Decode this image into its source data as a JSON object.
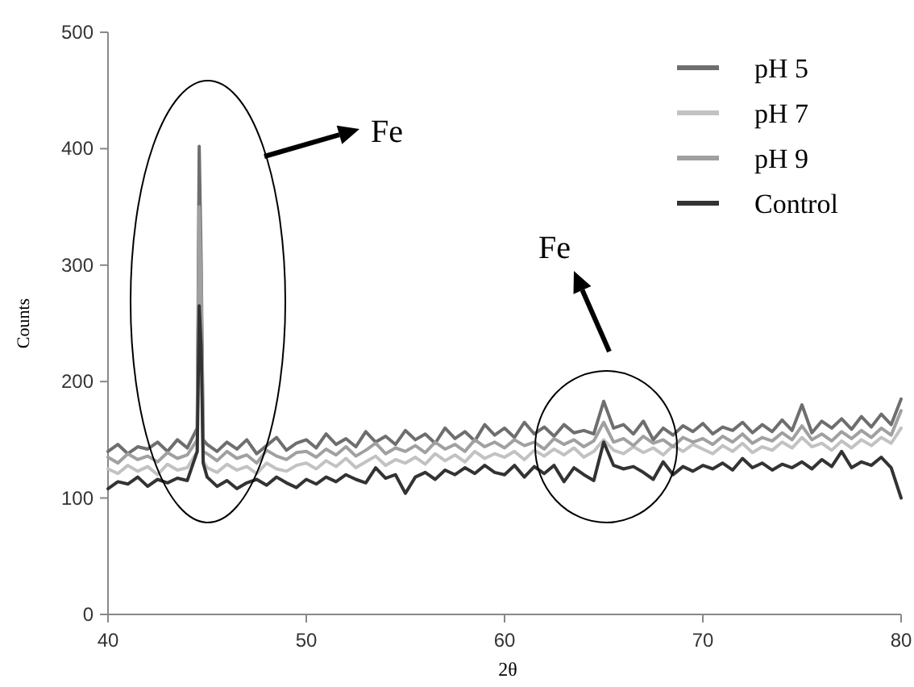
{
  "chart_data": {
    "type": "line",
    "xlabel": "2θ",
    "ylabel": "Counts",
    "x": [
      40,
      40.5,
      41,
      41.5,
      42,
      42.5,
      43,
      43.5,
      44,
      44.5,
      44.6,
      44.7,
      44.8,
      45,
      45.5,
      46,
      46.5,
      47,
      47.5,
      48,
      48.5,
      49,
      49.5,
      50,
      50.5,
      51,
      51.5,
      52,
      52.5,
      53,
      53.5,
      54,
      54.5,
      55,
      55.5,
      56,
      56.5,
      57,
      57.5,
      58,
      58.5,
      59,
      59.5,
      60,
      60.5,
      61,
      61.5,
      62,
      62.5,
      63,
      63.5,
      64,
      64.5,
      65,
      65.5,
      66,
      66.5,
      67,
      67.5,
      68,
      68.5,
      69,
      69.5,
      70,
      70.5,
      71,
      71.5,
      72,
      72.5,
      73,
      73.5,
      74,
      74.5,
      75,
      75.5,
      76,
      76.5,
      77,
      77.5,
      78,
      78.5,
      79,
      79.5,
      80
    ],
    "xlim": [
      40,
      80
    ],
    "xticks": [
      40,
      50,
      60,
      70,
      80
    ],
    "ylim": [
      0,
      500
    ],
    "yticks": [
      0,
      100,
      200,
      300,
      400,
      500
    ],
    "grid": false,
    "legend": "top right",
    "marker": "none",
    "line_style": "solid",
    "series": [
      {
        "name": "pH 5",
        "color": "#6e6e6e",
        "values": [
          140,
          146,
          138,
          144,
          142,
          148,
          140,
          150,
          143,
          160,
          402,
          300,
          150,
          146,
          140,
          148,
          142,
          150,
          138,
          145,
          152,
          141,
          147,
          150,
          143,
          155,
          146,
          151,
          144,
          157,
          148,
          153,
          146,
          158,
          150,
          155,
          147,
          160,
          151,
          157,
          149,
          163,
          154,
          160,
          152,
          165,
          155,
          161,
          153,
          163,
          156,
          158,
          155,
          183,
          160,
          163,
          155,
          166,
          150,
          160,
          154,
          162,
          157,
          164,
          155,
          161,
          158,
          165,
          156,
          163,
          157,
          167,
          158,
          180,
          156,
          166,
          160,
          168,
          159,
          170,
          161,
          172,
          163,
          185
        ]
      },
      {
        "name": "pH 7",
        "color": "#c2c2c2",
        "values": [
          125,
          121,
          128,
          123,
          127,
          120,
          129,
          124,
          126,
          140,
          300,
          250,
          132,
          126,
          122,
          129,
          124,
          127,
          121,
          130,
          125,
          123,
          128,
          130,
          125,
          132,
          127,
          134,
          126,
          131,
          136,
          128,
          133,
          130,
          135,
          129,
          138,
          132,
          137,
          131,
          140,
          134,
          138,
          135,
          140,
          133,
          141,
          136,
          142,
          137,
          143,
          135,
          140,
          150,
          141,
          138,
          144,
          139,
          143,
          137,
          145,
          140,
          146,
          142,
          138,
          145,
          140,
          147,
          139,
          144,
          141,
          148,
          143,
          152,
          144,
          147,
          141,
          149,
          143,
          150,
          145,
          152,
          147,
          160
        ]
      },
      {
        "name": "pH 9",
        "color": "#a0a0a0",
        "values": [
          135,
          130,
          138,
          133,
          136,
          131,
          139,
          134,
          137,
          150,
          350,
          280,
          140,
          138,
          132,
          140,
          134,
          137,
          130,
          141,
          136,
          133,
          139,
          140,
          135,
          142,
          137,
          144,
          136,
          141,
          147,
          138,
          143,
          140,
          145,
          139,
          148,
          142,
          146,
          140,
          150,
          144,
          148,
          143,
          150,
          145,
          148,
          142,
          151,
          146,
          150,
          144,
          149,
          165,
          148,
          151,
          145,
          153,
          147,
          150,
          144,
          152,
          148,
          151,
          146,
          153,
          148,
          155,
          147,
          152,
          149,
          156,
          150,
          162,
          150,
          155,
          149,
          157,
          151,
          158,
          152,
          160,
          154,
          175
        ]
      },
      {
        "name": "Control",
        "color": "#333333",
        "values": [
          108,
          114,
          112,
          118,
          110,
          116,
          113,
          117,
          115,
          140,
          265,
          230,
          130,
          118,
          110,
          115,
          108,
          113,
          116,
          111,
          118,
          113,
          109,
          116,
          112,
          118,
          114,
          120,
          116,
          113,
          126,
          117,
          120,
          104,
          118,
          122,
          116,
          124,
          120,
          126,
          121,
          128,
          122,
          120,
          128,
          118,
          127,
          121,
          128,
          114,
          126,
          120,
          115,
          148,
          128,
          125,
          127,
          122,
          116,
          131,
          120,
          127,
          123,
          128,
          125,
          130,
          124,
          134,
          126,
          130,
          124,
          129,
          126,
          131,
          125,
          133,
          127,
          140,
          126,
          131,
          128,
          135,
          126,
          100
        ]
      }
    ],
    "annotations": [
      "Fe",
      "Fe"
    ]
  }
}
